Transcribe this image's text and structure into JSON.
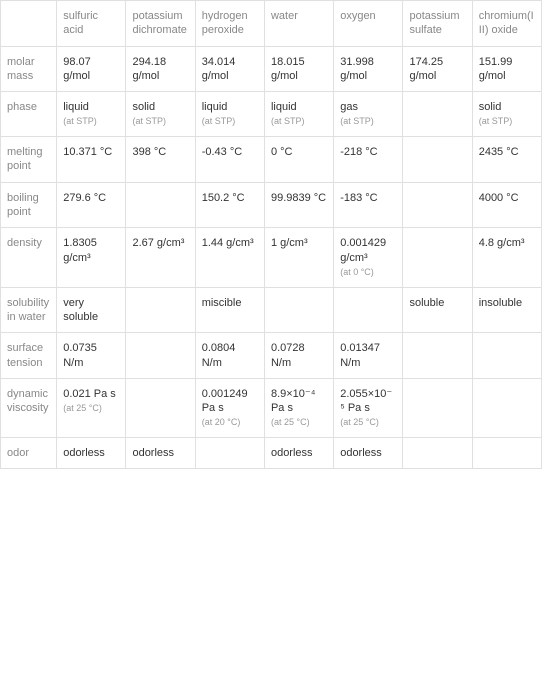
{
  "columns": [
    "",
    "sulfuric acid",
    "potassium dichromate",
    "hydrogen peroxide",
    "water",
    "oxygen",
    "potassium sulfate",
    "chromium(III) oxide"
  ],
  "rows": [
    {
      "label": "molar mass",
      "cells": [
        {
          "value": "98.07 g/mol"
        },
        {
          "value": "294.18 g/mol"
        },
        {
          "value": "34.014 g/mol"
        },
        {
          "value": "18.015 g/mol"
        },
        {
          "value": "31.998 g/mol"
        },
        {
          "value": "174.25 g/mol"
        },
        {
          "value": "151.99 g/mol"
        }
      ]
    },
    {
      "label": "phase",
      "cells": [
        {
          "value": "liquid",
          "note": "(at STP)"
        },
        {
          "value": "solid",
          "note": "(at STP)"
        },
        {
          "value": "liquid",
          "note": "(at STP)"
        },
        {
          "value": "liquid",
          "note": "(at STP)"
        },
        {
          "value": "gas",
          "note": "(at STP)"
        },
        {
          "value": ""
        },
        {
          "value": "solid",
          "note": "(at STP)"
        }
      ]
    },
    {
      "label": "melting point",
      "cells": [
        {
          "value": "10.371 °C"
        },
        {
          "value": "398 °C"
        },
        {
          "value": "-0.43 °C"
        },
        {
          "value": "0 °C"
        },
        {
          "value": "-218 °C"
        },
        {
          "value": ""
        },
        {
          "value": "2435 °C"
        }
      ]
    },
    {
      "label": "boiling point",
      "cells": [
        {
          "value": "279.6 °C"
        },
        {
          "value": ""
        },
        {
          "value": "150.2 °C"
        },
        {
          "value": "99.9839 °C"
        },
        {
          "value": "-183 °C"
        },
        {
          "value": ""
        },
        {
          "value": "4000 °C"
        }
      ]
    },
    {
      "label": "density",
      "cells": [
        {
          "value": "1.8305 g/cm³"
        },
        {
          "value": "2.67 g/cm³"
        },
        {
          "value": "1.44 g/cm³"
        },
        {
          "value": "1 g/cm³"
        },
        {
          "value": "0.001429 g/cm³",
          "note": "(at 0 °C)"
        },
        {
          "value": ""
        },
        {
          "value": "4.8 g/cm³"
        }
      ]
    },
    {
      "label": "solubility in water",
      "cells": [
        {
          "value": "very soluble"
        },
        {
          "value": ""
        },
        {
          "value": "miscible"
        },
        {
          "value": ""
        },
        {
          "value": ""
        },
        {
          "value": "soluble"
        },
        {
          "value": "insoluble"
        }
      ]
    },
    {
      "label": "surface tension",
      "cells": [
        {
          "value": "0.0735 N/m"
        },
        {
          "value": ""
        },
        {
          "value": "0.0804 N/m"
        },
        {
          "value": "0.0728 N/m"
        },
        {
          "value": "0.01347 N/m"
        },
        {
          "value": ""
        },
        {
          "value": ""
        }
      ]
    },
    {
      "label": "dynamic viscosity",
      "cells": [
        {
          "value": "0.021 Pa s",
          "note": "(at 25 °C)"
        },
        {
          "value": ""
        },
        {
          "value": "0.001249 Pa s",
          "note": "(at 20 °C)"
        },
        {
          "value": "8.9×10⁻⁴ Pa s",
          "note": "(at 25 °C)"
        },
        {
          "value": "2.055×10⁻⁵ Pa s",
          "note": "(at 25 °C)"
        },
        {
          "value": ""
        },
        {
          "value": ""
        }
      ]
    },
    {
      "label": "odor",
      "cells": [
        {
          "value": "odorless"
        },
        {
          "value": "odorless"
        },
        {
          "value": ""
        },
        {
          "value": "odorless"
        },
        {
          "value": "odorless"
        },
        {
          "value": ""
        },
        {
          "value": ""
        }
      ]
    }
  ],
  "styling": {
    "border_color": "#e0e0e0",
    "header_text_color": "#888888",
    "row_label_color": "#888888",
    "data_text_color": "#333333",
    "note_text_color": "#999999",
    "background_color": "#ffffff",
    "font_size_main": 11,
    "font_size_note": 9
  }
}
